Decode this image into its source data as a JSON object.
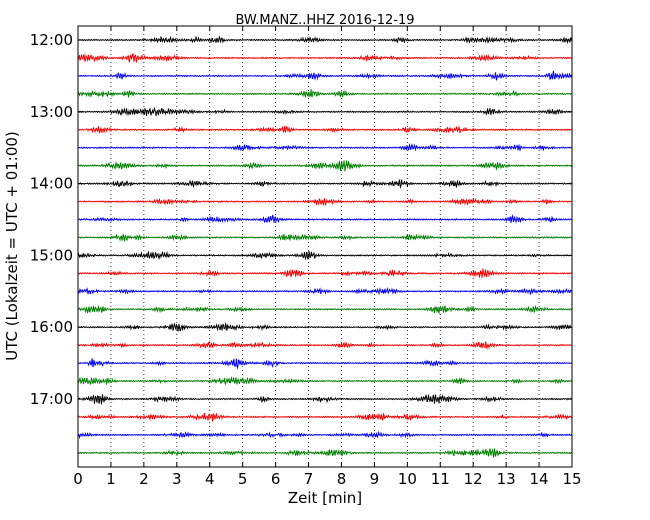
{
  "chart_data": {
    "type": "line",
    "title": "BW.MANZ..HHZ 2016-12-19",
    "xlabel": "Zeit  [min]",
    "ylabel": "UTC (Lokalzeit = UTC + 01:00)",
    "xlim": [
      0,
      15
    ],
    "x_ticks": [
      "0",
      "1",
      "2",
      "3",
      "4",
      "5",
      "6",
      "7",
      "8",
      "9",
      "10",
      "11",
      "12",
      "13",
      "14",
      "15"
    ],
    "y_tick_labels": [
      "12:00",
      "13:00",
      "14:00",
      "15:00",
      "16:00",
      "17:00"
    ],
    "grid": "vertical dotted",
    "trace_colors": [
      "#000000",
      "#ff0000",
      "#0000ff",
      "#008000"
    ],
    "trace_interval_min": 15,
    "traces": [
      {
        "start": "12:00"
      },
      {
        "start": "12:15"
      },
      {
        "start": "12:30"
      },
      {
        "start": "12:45"
      },
      {
        "start": "13:00"
      },
      {
        "start": "13:15"
      },
      {
        "start": "13:30"
      },
      {
        "start": "13:45"
      },
      {
        "start": "14:00"
      },
      {
        "start": "14:15"
      },
      {
        "start": "14:30"
      },
      {
        "start": "14:45"
      },
      {
        "start": "15:00"
      },
      {
        "start": "15:15"
      },
      {
        "start": "15:30"
      },
      {
        "start": "15:45"
      },
      {
        "start": "16:00"
      },
      {
        "start": "16:15"
      },
      {
        "start": "16:30"
      },
      {
        "start": "16:45"
      },
      {
        "start": "17:00"
      },
      {
        "start": "17:15"
      },
      {
        "start": "17:30"
      },
      {
        "start": "17:45"
      }
    ]
  }
}
